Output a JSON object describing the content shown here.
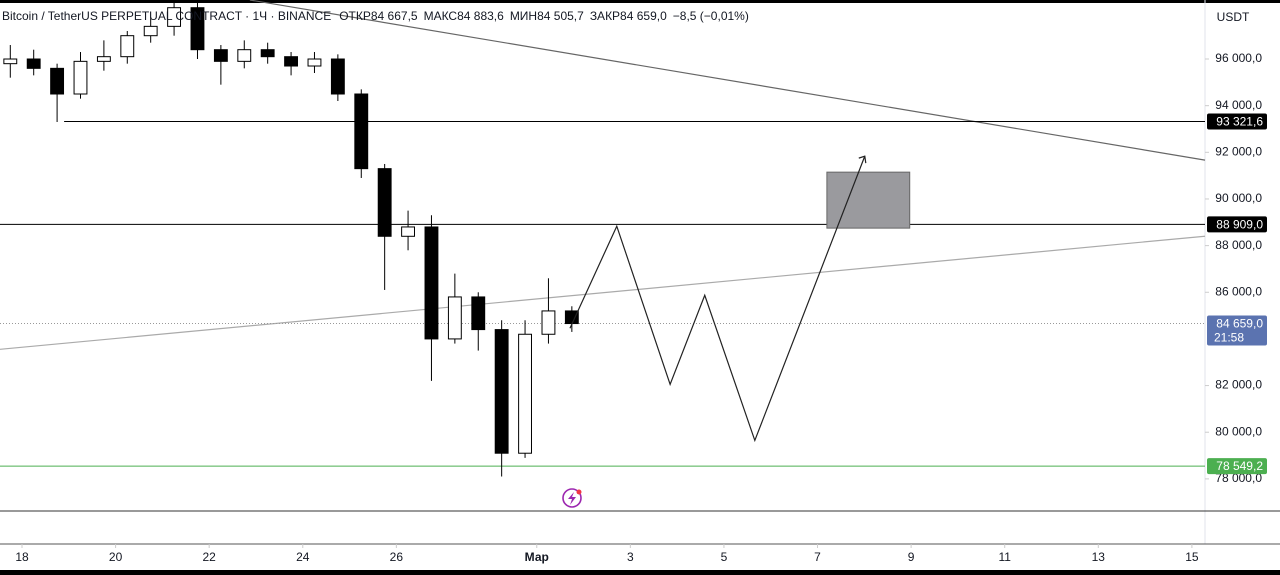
{
  "chart_data": {
    "type": "candlestick",
    "title": "Bitcoin / TetherUS PERPETUAL CONTRACT · 1Ч · BINANCE",
    "stats": [
      "ОТКР84 667,5",
      "МАКС84 883,6",
      "МИН84 505,7",
      "ЗАКР84 659,0",
      "−8,5 (−0,01%)"
    ],
    "currency": "USDT",
    "x": [
      17.75,
      18.25,
      18.75,
      19.25,
      19.75,
      20.25,
      20.75,
      21.25,
      21.75,
      22.25,
      22.75,
      23.25,
      23.75,
      24.25,
      24.75,
      25.25,
      25.75,
      26.25,
      26.75,
      27.25,
      27.75,
      28.25,
      28.75,
      29.25,
      29.75
    ],
    "open": [
      95800,
      96000,
      95600,
      94500,
      95900,
      96100,
      97000,
      97400,
      98200,
      96400,
      95900,
      96400,
      96100,
      95700,
      96000,
      94500,
      91300,
      88400,
      88800,
      84000,
      85800,
      84400,
      79100,
      84200,
      85200
    ],
    "high": [
      96600,
      96400,
      95800,
      96300,
      96800,
      97200,
      97800,
      98500,
      98500,
      96600,
      96800,
      96700,
      96300,
      96300,
      96200,
      94700,
      91500,
      89500,
      89300,
      86800,
      86000,
      84800,
      84800,
      86600,
      85400
    ],
    "low": [
      95200,
      95300,
      93300,
      94300,
      95500,
      95800,
      96700,
      97000,
      96000,
      94900,
      95600,
      95800,
      95300,
      95400,
      94200,
      90900,
      86100,
      87800,
      82200,
      83800,
      83500,
      78100,
      78900,
      83800,
      84300
    ],
    "close": [
      96000,
      95600,
      94500,
      95900,
      96100,
      97000,
      97400,
      98200,
      96400,
      95900,
      96400,
      96100,
      95700,
      96000,
      94500,
      91300,
      88400,
      88800,
      84000,
      85800,
      84400,
      79100,
      84200,
      85200,
      84659
    ],
    "xlim": [
      17.53,
      43.28
    ],
    "ylim": [
      76580,
      98530
    ],
    "xticks": [
      18,
      20,
      22,
      24,
      26,
      {
        "value": 29,
        "label": "Мар"
      },
      {
        "value": 31,
        "label": "3"
      },
      {
        "value": 33,
        "label": "5"
      },
      {
        "value": 35,
        "label": "7"
      },
      {
        "value": 37,
        "label": "9"
      },
      {
        "value": 39,
        "label": "11"
      },
      {
        "value": 41,
        "label": "13"
      },
      {
        "value": 43,
        "label": "15"
      }
    ],
    "yticks": [
      {
        "value": 78000,
        "label": "78 000,0"
      },
      {
        "value": 80000,
        "label": "80 000,0"
      },
      {
        "value": 82000,
        "label": "82 000,0"
      },
      {
        "value": 86000,
        "label": "86 000,0"
      },
      {
        "value": 88000,
        "label": "88 000,0"
      },
      {
        "value": 90000,
        "label": "90 000,0"
      },
      {
        "value": 92000,
        "label": "92 000,0"
      },
      {
        "value": 94000,
        "label": "94 000,0"
      },
      {
        "value": 96000,
        "label": "96 000,0"
      }
    ],
    "levels": [
      {
        "value": 93321.6,
        "label": "93 321,6",
        "color": "#000000",
        "start": 18.9
      },
      {
        "value": 88909.0,
        "label": "88 909,0",
        "color": "#000000",
        "start": 17.53
      },
      {
        "value": 78549.2,
        "label": "78 549,2",
        "color": "#4caf50",
        "start": 17.53
      }
    ],
    "current": {
      "value": 84659.0,
      "label": "84 659,0",
      "timer": "21:58",
      "color": "#5b73b0"
    },
    "trend_lines": [
      {
        "x": [
          22.87,
          43.28
        ],
        "y": [
          98530,
          91665
        ],
        "color": "#666666"
      },
      {
        "x": [
          17.53,
          43.28
        ],
        "y": [
          83554,
          88403
        ],
        "color": "#aaaaaa"
      }
    ],
    "projection": {
      "x": [
        29.71,
        30.71,
        31.85,
        32.59,
        33.66,
        36.01
      ],
      "y": [
        84455,
        88833,
        82052,
        85871,
        79648,
        91837
      ],
      "color": "#222222"
    },
    "box": {
      "x": [
        35.2,
        36.97
      ],
      "y": [
        88750,
        91150
      ],
      "color": "#9a9a9e"
    }
  }
}
